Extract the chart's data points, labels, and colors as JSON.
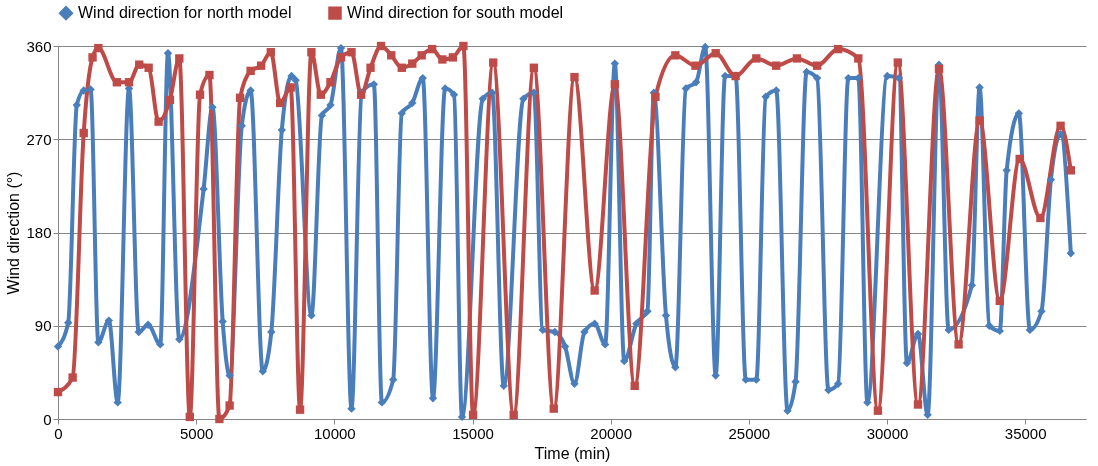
{
  "chart_data": {
    "type": "line",
    "xlabel": "Time (min)",
    "ylabel": "Wind direction (°)",
    "xlim": [
      0,
      37200
    ],
    "xticks": [
      0,
      5000,
      10000,
      15000,
      20000,
      25000,
      30000,
      35000
    ],
    "ylim": [
      0,
      360
    ],
    "yticks": [
      0,
      90,
      180,
      270,
      360
    ],
    "grid": "y",
    "legend": "top",
    "line_style": "solid",
    "series": [
      {
        "name": "Wind direction for north model",
        "color": "#4a7ebb",
        "marker": "diamond",
        "x": [
          0,
          370,
          680,
          930,
          1180,
          1460,
          1840,
          2160,
          2570,
          2920,
          3260,
          3700,
          3980,
          4390,
          5270,
          5590,
          5960,
          6210,
          6650,
          6970,
          7410,
          7720,
          8100,
          8450,
          8600,
          9170,
          9550,
          9860,
          10240,
          10620,
          10990,
          11430,
          11720,
          12130,
          12440,
          12820,
          13200,
          13570,
          14010,
          14330,
          14620,
          15370,
          15710,
          16130,
          16840,
          17220,
          17540,
          17980,
          18350,
          18690,
          19050,
          19420,
          19800,
          20150,
          20490,
          20930,
          21330,
          21560,
          22000,
          22340,
          22720,
          23090,
          23420,
          23800,
          24140,
          24520,
          24890,
          25270,
          25610,
          25990,
          26400,
          26690,
          27090,
          27470,
          27880,
          28230,
          28600,
          28960,
          29290,
          30010,
          30430,
          30720,
          31120,
          31470,
          31880,
          32230,
          33070,
          33350,
          33700,
          34080,
          34330,
          34770,
          35170,
          35590,
          35930,
          36280,
          36650
        ],
        "values": [
          70,
          93,
          303,
          317,
          318,
          74,
          95,
          16,
          319,
          84,
          91,
          72,
          353,
          77,
          222,
          301,
          94,
          42,
          283,
          317,
          46,
          84,
          279,
          331,
          327,
          100,
          293,
          303,
          358,
          10,
          315,
          323,
          16,
          38,
          295,
          305,
          329,
          20,
          319,
          313,
          2,
          309,
          315,
          32,
          309,
          315,
          86,
          84,
          70,
          34,
          84,
          92,
          72,
          343,
          56,
          92,
          104,
          315,
          100,
          50,
          319,
          325,
          359,
          42,
          331,
          331,
          38,
          38,
          311,
          317,
          8,
          36,
          335,
          329,
          28,
          34,
          329,
          329,
          16,
          331,
          329,
          54,
          82,
          4,
          342,
          86,
          129,
          320,
          90,
          85,
          240,
          295,
          86,
          104,
          231,
          275,
          160
        ]
      },
      {
        "name": "Wind direction for south model",
        "color": "#be4b48",
        "marker": "square",
        "x": [
          0,
          530,
          930,
          1250,
          1460,
          2130,
          2570,
          2940,
          3280,
          3640,
          4050,
          4390,
          4770,
          5140,
          5480,
          5840,
          6210,
          6590,
          6970,
          7350,
          7700,
          8040,
          8420,
          8760,
          9170,
          9510,
          9860,
          10240,
          10620,
          10970,
          11310,
          11690,
          12060,
          12440,
          12820,
          13160,
          13540,
          13910,
          14290,
          14670,
          15020,
          15750,
          16490,
          17220,
          17940,
          18690,
          19420,
          20150,
          20870,
          21620,
          22340,
          23070,
          23800,
          24520,
          25270,
          25990,
          26740,
          27470,
          28230,
          28960,
          29670,
          30390,
          31120,
          31880,
          32590,
          33350,
          34080,
          34800,
          35550,
          36280,
          36650
        ],
        "values": [
          26,
          40,
          276,
          349,
          358,
          325,
          325,
          342,
          339,
          287,
          308,
          348,
          2,
          313,
          332,
          0,
          13,
          310,
          336,
          341,
          354,
          305,
          320,
          9,
          354,
          313,
          325,
          349,
          354,
          313,
          339,
          360,
          351,
          339,
          343,
          351,
          357,
          347,
          349,
          360,
          4,
          344,
          4,
          339,
          10,
          330,
          124,
          323,
          32,
          311,
          351,
          341,
          353,
          331,
          348,
          341,
          348,
          341,
          357,
          348,
          8,
          344,
          14,
          338,
          72,
          288,
          114,
          251,
          194,
          283,
          240
        ]
      }
    ]
  }
}
